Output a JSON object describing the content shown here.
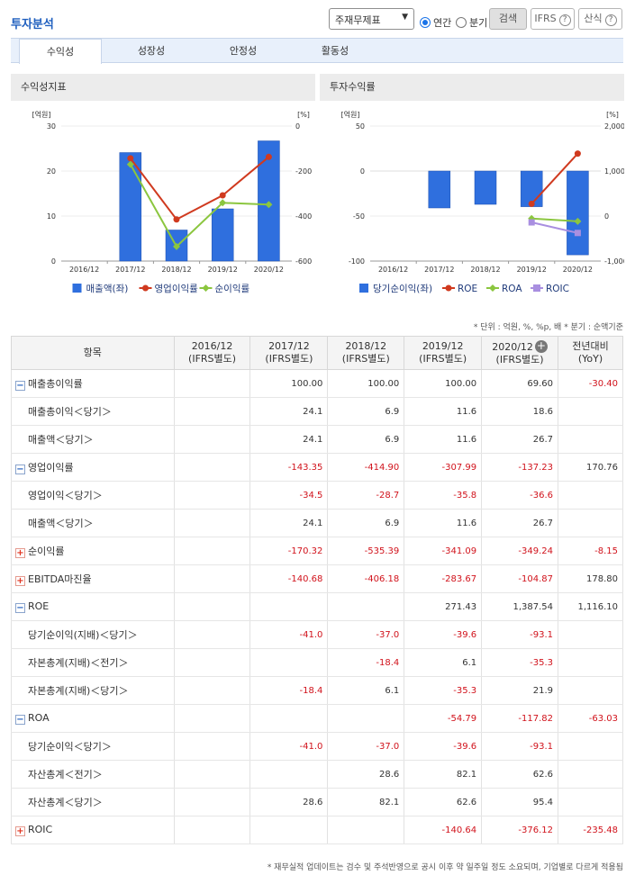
{
  "header": {
    "title": "투자분석",
    "select_value": "주재무제표",
    "radio_annual": "연간",
    "radio_quarter": "분기",
    "search_label": "검색",
    "ifrs_label": "IFRS",
    "formula_label": "산식"
  },
  "tabs": [
    "수익성",
    "성장성",
    "안정성",
    "활동성"
  ],
  "chart_data": [
    {
      "type": "bar",
      "title": "수익성지표",
      "categories": [
        "2016/12",
        "2017/12",
        "2018/12",
        "2019/12",
        "2020/12"
      ],
      "left_axis_unit": "[억원]",
      "right_axis_unit": "[%]",
      "left_ylim": [
        0,
        30
      ],
      "left_ticks": [
        "30",
        "20",
        "10",
        "0"
      ],
      "right_ylim": [
        -600,
        0
      ],
      "right_ticks": [
        "0",
        "-200",
        "-400",
        "-600"
      ],
      "series": [
        {
          "name": "매출액(좌)",
          "type": "bar",
          "axis": "left",
          "color": "#2f6fde",
          "values": [
            null,
            24.1,
            6.9,
            11.6,
            26.7
          ]
        },
        {
          "name": "영업이익률",
          "type": "line",
          "axis": "right",
          "color": "#d03a1f",
          "values": [
            null,
            -143.35,
            -414.9,
            -307.99,
            -137.23
          ]
        },
        {
          "name": "순이익률",
          "type": "line",
          "axis": "right",
          "color": "#8bc63f",
          "values": [
            null,
            -170.32,
            -535.39,
            -341.09,
            -349.24
          ]
        }
      ]
    },
    {
      "type": "bar",
      "title": "투자수익률",
      "categories": [
        "2016/12",
        "2017/12",
        "2018/12",
        "2019/12",
        "2020/12"
      ],
      "left_axis_unit": "[억원]",
      "right_axis_unit": "[%]",
      "left_ylim": [
        -100,
        50
      ],
      "left_ticks": [
        "50",
        "0",
        "-50",
        "-100"
      ],
      "right_ylim": [
        -1000,
        2000
      ],
      "right_ticks": [
        "2,000",
        "1,000",
        "0",
        "-1,000"
      ],
      "series": [
        {
          "name": "당기순이익(좌)",
          "type": "bar",
          "axis": "left",
          "color": "#2f6fde",
          "values": [
            null,
            -41.0,
            -37.0,
            -39.6,
            -93.1
          ]
        },
        {
          "name": "ROE",
          "type": "line",
          "axis": "right",
          "color": "#d03a1f",
          "values": [
            null,
            null,
            null,
            271.43,
            1387.54
          ]
        },
        {
          "name": "ROA",
          "type": "line",
          "axis": "right",
          "color": "#8bc63f",
          "values": [
            null,
            null,
            null,
            -54.79,
            -117.82
          ]
        },
        {
          "name": "ROIC",
          "type": "line",
          "axis": "right",
          "color": "#a98fe0",
          "values": [
            null,
            null,
            null,
            -140.64,
            -376.12
          ]
        }
      ]
    }
  ],
  "note": "* 단위 : 억원, %, %p, 배   * 분기 : 순액기준",
  "table": {
    "headers": [
      {
        "main": "항목",
        "sub": ""
      },
      {
        "main": "2016/12",
        "sub": "(IFRS별도)"
      },
      {
        "main": "2017/12",
        "sub": "(IFRS별도)"
      },
      {
        "main": "2018/12",
        "sub": "(IFRS별도)"
      },
      {
        "main": "2019/12",
        "sub": "(IFRS별도)"
      },
      {
        "main": "2020/12",
        "sub": "(IFRS별도)"
      },
      {
        "main": "전년대비",
        "sub": "(YoY)"
      }
    ],
    "rows": [
      {
        "label": "매출총이익률",
        "toggle": "minus",
        "values": [
          "",
          "100.00",
          "100.00",
          "100.00",
          "69.60",
          "-30.40"
        ]
      },
      {
        "label": "매출총이익＜당기＞",
        "values": [
          "",
          "24.1",
          "6.9",
          "11.6",
          "18.6",
          ""
        ]
      },
      {
        "label": "매출액＜당기＞",
        "values": [
          "",
          "24.1",
          "6.9",
          "11.6",
          "26.7",
          ""
        ]
      },
      {
        "label": "영업이익률",
        "toggle": "minus",
        "values": [
          "",
          "-143.35",
          "-414.90",
          "-307.99",
          "-137.23",
          "170.76"
        ]
      },
      {
        "label": "영업이익＜당기＞",
        "values": [
          "",
          "-34.5",
          "-28.7",
          "-35.8",
          "-36.6",
          ""
        ]
      },
      {
        "label": "매출액＜당기＞",
        "values": [
          "",
          "24.1",
          "6.9",
          "11.6",
          "26.7",
          ""
        ]
      },
      {
        "label": "순이익률",
        "toggle": "plus",
        "values": [
          "",
          "-170.32",
          "-535.39",
          "-341.09",
          "-349.24",
          "-8.15"
        ]
      },
      {
        "label": "EBITDA마진율",
        "toggle": "plus",
        "values": [
          "",
          "-140.68",
          "-406.18",
          "-283.67",
          "-104.87",
          "178.80"
        ]
      },
      {
        "label": "ROE",
        "toggle": "minus",
        "values": [
          "",
          "",
          "",
          "271.43",
          "1,387.54",
          "1,116.10"
        ]
      },
      {
        "label": "당기순이익(지배)＜당기＞",
        "values": [
          "",
          "-41.0",
          "-37.0",
          "-39.6",
          "-93.1",
          ""
        ]
      },
      {
        "label": "자본총계(지배)＜전기＞",
        "values": [
          "",
          "",
          "-18.4",
          "6.1",
          "-35.3",
          ""
        ]
      },
      {
        "label": "자본총계(지배)＜당기＞",
        "values": [
          "",
          "-18.4",
          "6.1",
          "-35.3",
          "21.9",
          ""
        ]
      },
      {
        "label": "ROA",
        "toggle": "minus",
        "values": [
          "",
          "",
          "",
          "-54.79",
          "-117.82",
          "-63.03"
        ]
      },
      {
        "label": "당기순이익＜당기＞",
        "values": [
          "",
          "-41.0",
          "-37.0",
          "-39.6",
          "-93.1",
          ""
        ]
      },
      {
        "label": "자산총계＜전기＞",
        "values": [
          "",
          "",
          "28.6",
          "82.1",
          "62.6",
          ""
        ]
      },
      {
        "label": "자산총계＜당기＞",
        "values": [
          "",
          "28.6",
          "82.1",
          "62.6",
          "95.4",
          ""
        ]
      },
      {
        "label": "ROIC",
        "toggle": "plus",
        "values": [
          "",
          "",
          "",
          "-140.64",
          "-376.12",
          "-235.48"
        ]
      }
    ]
  },
  "footer": "* 재무실적 업데이트는 검수 및 주석반영으로 공시 이후 약 일주일 정도 소요되며, 기업별로 다르게 적용됨"
}
